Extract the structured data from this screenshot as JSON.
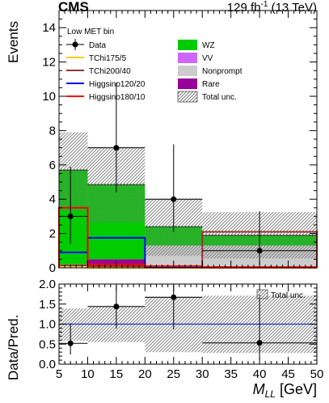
{
  "header": {
    "experiment": "CMS",
    "lumi_prefix": "129 fb",
    "lumi_exponent": "-1",
    "lumi_suffix": " (13 TeV)"
  },
  "chart_data": [
    {
      "type": "bar",
      "stacked": true,
      "annotation": "Low MET bin",
      "ylabel": "Events",
      "xlabel": "",
      "xlim": [
        5,
        50
      ],
      "ylim": [
        0,
        15
      ],
      "yticks": [
        0,
        2,
        4,
        6,
        8,
        10,
        12,
        14
      ],
      "bin_edges": [
        5,
        10,
        20,
        30,
        50
      ],
      "legend_position": "top",
      "legend": [
        {
          "key": "data",
          "label": "Data",
          "style": "marker"
        },
        {
          "key": "wz",
          "label": "WZ",
          "style": "fill",
          "color": "#00cc00"
        },
        {
          "key": "tchi175",
          "label": "TChi175/5",
          "style": "line",
          "color": "#ffcc00"
        },
        {
          "key": "vv",
          "label": "VV",
          "style": "fill",
          "color": "#cc66ff"
        },
        {
          "key": "tchi200",
          "label": "TChi200/40",
          "style": "line",
          "color": "#993333"
        },
        {
          "key": "nonprompt",
          "label": "Nonprompt",
          "style": "fill",
          "color": "#cccccc"
        },
        {
          "key": "higgsino120",
          "label": "Higgsino120/20",
          "style": "line",
          "color": "#0000ff"
        },
        {
          "key": "rare",
          "label": "Rare",
          "style": "fill",
          "color": "#990099"
        },
        {
          "key": "higgsino180",
          "label": "Higgsino180/10",
          "style": "line",
          "color": "#ff0000"
        },
        {
          "key": "unc",
          "label": "Total unc.",
          "style": "hatch"
        }
      ],
      "stack_series": [
        {
          "key": "nonprompt",
          "name": "Nonprompt",
          "color": "#cccccc",
          "values": [
            0.2,
            0.0,
            1.3,
            1.3
          ]
        },
        {
          "key": "rare",
          "name": "Rare",
          "color": "#990099",
          "values": [
            0.0,
            0.5,
            0.0,
            0.0
          ]
        },
        {
          "key": "vv",
          "name": "VV",
          "color": "#cc66ff",
          "values": [
            0.0,
            0.0,
            0.0,
            0.0
          ]
        },
        {
          "key": "wz",
          "name": "WZ",
          "color": "#00cc00",
          "values": [
            5.5,
            4.35,
            1.1,
            0.6
          ]
        }
      ],
      "total_prediction": [
        5.7,
        4.85,
        2.4,
        1.9
      ],
      "uncertainty_band": {
        "low": [
          3.3,
          2.65,
          0.7,
          0.55
        ],
        "high": [
          7.9,
          7.05,
          4.05,
          3.25
        ]
      },
      "signal_series": [
        {
          "key": "tchi175",
          "name": "TChi175/5",
          "color": "#ffcc00",
          "values": [
            0.1,
            0.0,
            0.0,
            0.0
          ]
        },
        {
          "key": "tchi200",
          "name": "TChi200/40",
          "color": "#993333",
          "values": [
            0.15,
            0.1,
            0.05,
            2.1
          ]
        },
        {
          "key": "higgsino120",
          "name": "Higgsino120/20",
          "color": "#0000ff",
          "values": [
            0.9,
            1.75,
            0.05,
            0.02
          ]
        },
        {
          "key": "higgsino180",
          "name": "Higgsino180/10",
          "color": "#ff0000",
          "values": [
            3.5,
            0.2,
            0.1,
            0.05
          ]
        }
      ],
      "data_points": {
        "x": [
          7,
          15,
          25,
          40
        ],
        "y": [
          3,
          7,
          4,
          1
        ],
        "err_low": [
          1.6,
          2.6,
          1.9,
          0.8
        ],
        "err_high": [
          2.9,
          3.8,
          3.2,
          2.3
        ]
      }
    },
    {
      "type": "scatter",
      "ylabel": "Data/Pred.",
      "xlabel_main": "M",
      "xlabel_sub": "LL",
      "xlabel_unit": " [GeV]",
      "xlim": [
        5,
        50
      ],
      "ylim": [
        0,
        2
      ],
      "yticks": [
        "0.0",
        "0.5",
        "1.0",
        "1.5",
        "2.0"
      ],
      "xticks": [
        5,
        10,
        15,
        20,
        25,
        30,
        35,
        40,
        45,
        50
      ],
      "reference_line": 1.0,
      "legend": [
        {
          "key": "unc",
          "label": "Total unc."
        }
      ],
      "unc_band": {
        "low": [
          0.58,
          0.55,
          0.3,
          0.28
        ],
        "high": [
          1.39,
          1.45,
          1.69,
          1.71
        ]
      },
      "points": {
        "x": [
          7,
          15,
          25,
          40
        ],
        "y": [
          0.52,
          1.44,
          1.67,
          0.53
        ],
        "err_low": [
          0.28,
          0.55,
          0.8,
          0.42
        ],
        "err_high": [
          0.5,
          0.78,
          1.3,
          1.2
        ]
      }
    }
  ]
}
